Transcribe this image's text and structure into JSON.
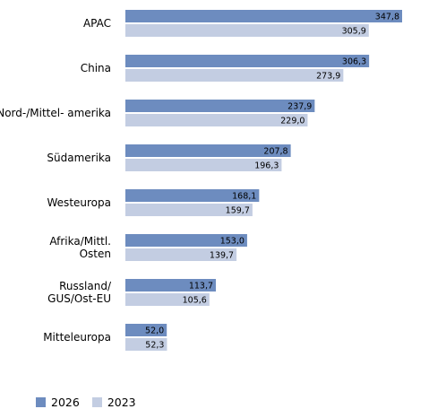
{
  "chart_data": {
    "type": "bar",
    "orientation": "horizontal",
    "categories": [
      "APAC",
      "China",
      "Nord-/Mittel- amerika",
      "Südamerika",
      "Westeuropa",
      "Afrika/Mittl. Osten",
      "Russland/ GUS/Ost-EU",
      "Mitteleuropa"
    ],
    "series": [
      {
        "name": "2026",
        "color": "#6d8cbf",
        "values": [
          347.8,
          306.3,
          237.9,
          207.8,
          168.1,
          153.0,
          113.7,
          52.0
        ],
        "labels": [
          "347,8",
          "306,3",
          "237,9",
          "207,8",
          "168,1",
          "153,0",
          "113,7",
          "52,0"
        ]
      },
      {
        "name": "2023",
        "color": "#c3cde2",
        "values": [
          305.9,
          273.9,
          229.0,
          196.3,
          159.7,
          139.7,
          105.6,
          52.3
        ],
        "labels": [
          "305,9",
          "273,9",
          "229,0",
          "196,3",
          "159,7",
          "139,7",
          "105,6",
          "52,3"
        ]
      }
    ],
    "xlim": [
      0,
      347.8
    ],
    "legend_position": "bottom-left",
    "grid": false
  }
}
